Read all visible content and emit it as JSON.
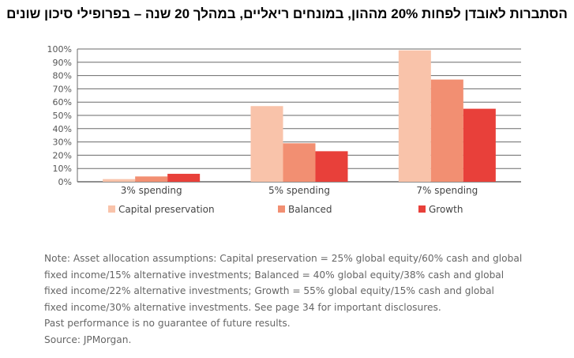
{
  "title": "הסתברות לאובדן לפחות 20% מההון, במונחים ריאליים, במהלך 20 שנה – בפרופילי סיכון שונים",
  "colors": {
    "capital_preservation": "#f9c3aa",
    "balanced": "#f28f72",
    "growth": "#e8403a",
    "gridline": "#6a6a6a",
    "text": "#555555"
  },
  "chart_data": {
    "type": "bar",
    "categories": [
      "3% spending",
      "5% spending",
      "7% spending"
    ],
    "series": [
      {
        "name": "Capital preservation",
        "values": [
          2,
          57,
          99
        ]
      },
      {
        "name": "Balanced",
        "values": [
          4,
          29,
          77
        ]
      },
      {
        "name": "Growth",
        "values": [
          6,
          23,
          55
        ]
      }
    ],
    "yticks": [
      "0%",
      "10%",
      "20%",
      "30%",
      "40%",
      "50%",
      "60%",
      "70%",
      "80%",
      "90%",
      "100%"
    ],
    "ylim": [
      0,
      100
    ],
    "grid": true,
    "legend": "bottom",
    "xlabel": "",
    "ylabel": ""
  },
  "note_lines": [
    "Note: Asset allocation assumptions: Capital preservation = 25% global equity/60% cash and global",
    "fixed income/15% alternative investments; Balanced = 40% global equity/38% cash and global",
    "fixed income/22% alternative investments; Growth = 55% global equity/15% cash and global",
    "fixed income/30% alternative investments. See page 34 for important disclosures.",
    "Past performance is no guarantee of future results.",
    "Source: JPMorgan."
  ]
}
